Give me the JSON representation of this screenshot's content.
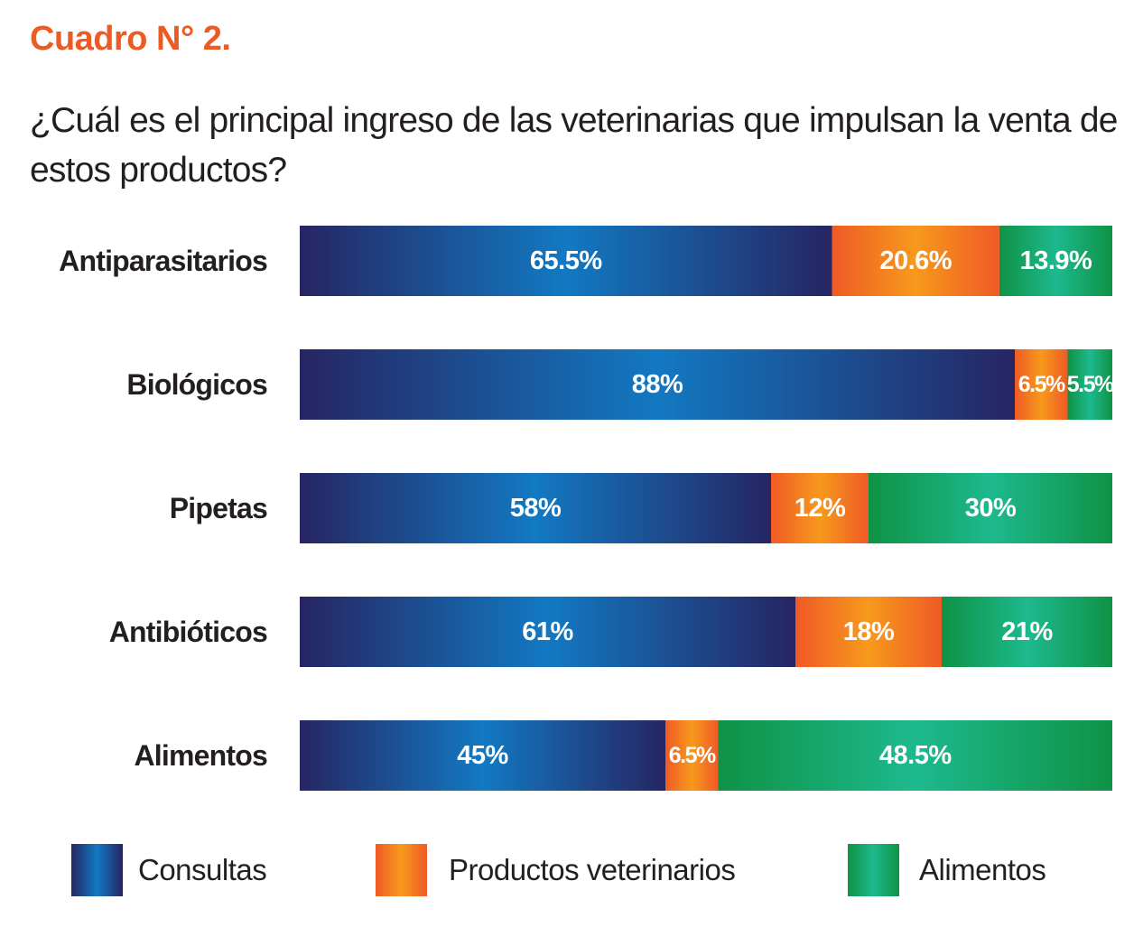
{
  "caption": "Cuadro N° 2.",
  "question": "¿Cuál es el principal ingreso de las veterinarias que impulsan la venta de estos productos?",
  "chart_data": {
    "type": "bar",
    "orientation": "horizontal",
    "stacked": true,
    "categories": [
      "Antiparasitarios",
      "Biológicos",
      "Pipetas",
      "Antibióticos",
      "Alimentos"
    ],
    "series": [
      {
        "name": "Consultas",
        "values": [
          65.5,
          88,
          58,
          61,
          45
        ],
        "labels": [
          "65.5%",
          "88%",
          "58%",
          "61%",
          "45%"
        ]
      },
      {
        "name": "Productos veterinarios",
        "values": [
          20.6,
          6.5,
          12,
          18,
          6.5
        ],
        "labels": [
          "20.6%",
          "6.5%",
          "12%",
          "18%",
          "6.5%"
        ]
      },
      {
        "name": "Alimentos",
        "values": [
          13.9,
          5.5,
          30,
          21,
          48.5
        ],
        "labels": [
          "13.9%",
          "5.5%",
          "30%",
          "21%",
          "48.5%"
        ]
      }
    ],
    "xlim": [
      0,
      100
    ],
    "legend_position": "bottom",
    "colors": {
      "Consultas": [
        "#262562",
        "#1279c2"
      ],
      "Productos veterinarios": [
        "#ef5a26",
        "#f7991c"
      ],
      "Alimentos": [
        "#0f9245",
        "#1db98e"
      ]
    }
  }
}
